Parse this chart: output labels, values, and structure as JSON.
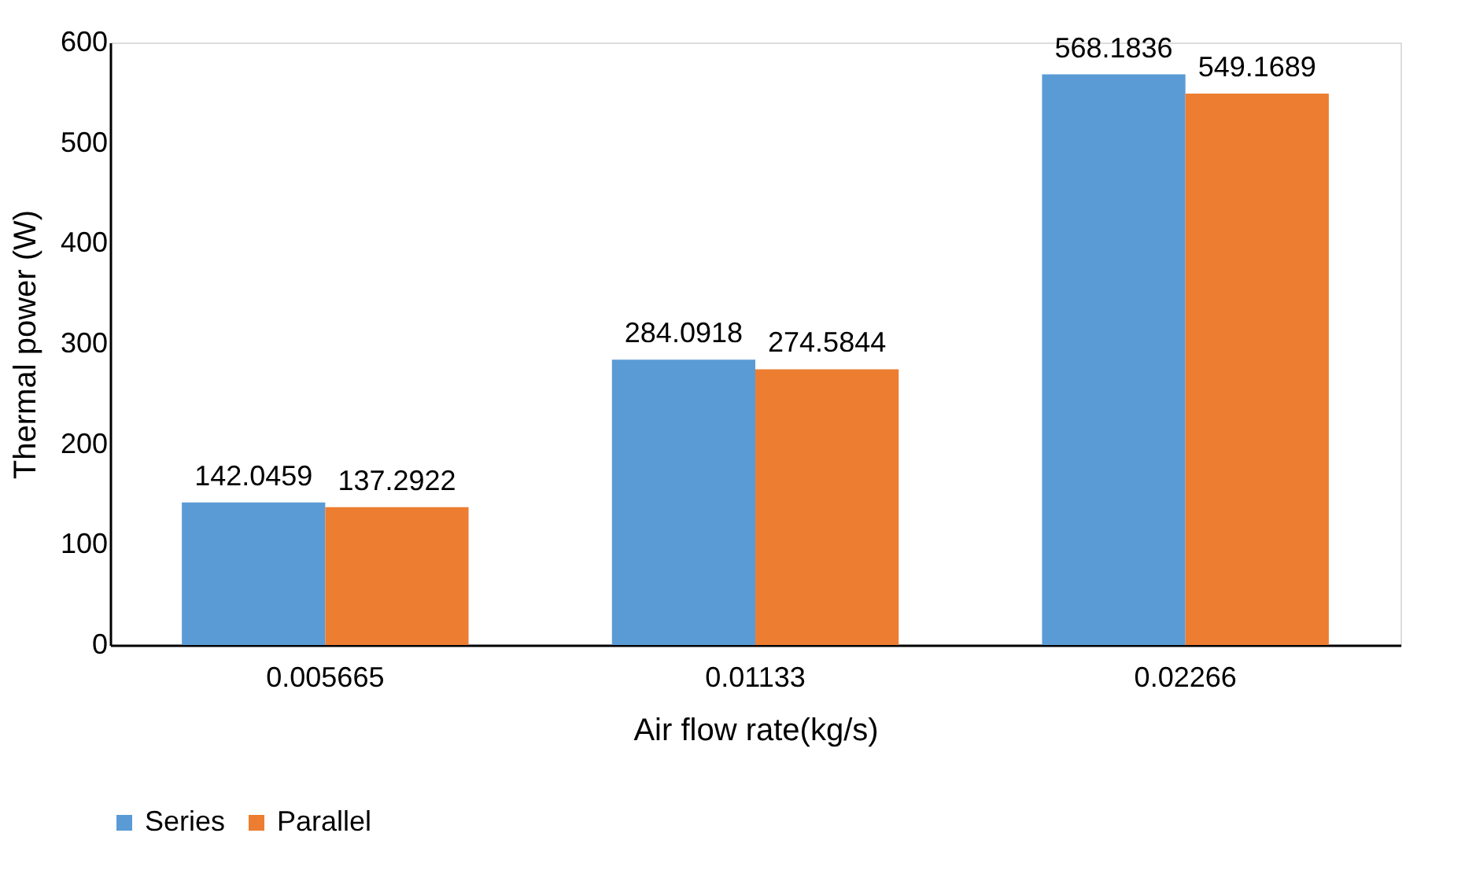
{
  "chart_data": {
    "type": "bar",
    "xlabel": "Air flow rate(kg/s)",
    "ylabel": "Thermal power (W)",
    "categories": [
      "0.005665",
      "0.01133",
      "0.02266"
    ],
    "series": [
      {
        "name": "Series",
        "color": "#5b9bd5",
        "values": [
          142.0459,
          284.0918,
          568.1836
        ]
      },
      {
        "name": "Parallel",
        "color": "#ed7d31",
        "values": [
          137.2922,
          274.5844,
          549.1689
        ]
      }
    ],
    "ylim": [
      0,
      600
    ],
    "yticks": [
      0,
      100,
      200,
      300,
      400,
      500,
      600
    ],
    "data_labels": true,
    "grid": false,
    "legend": "bottom"
  }
}
